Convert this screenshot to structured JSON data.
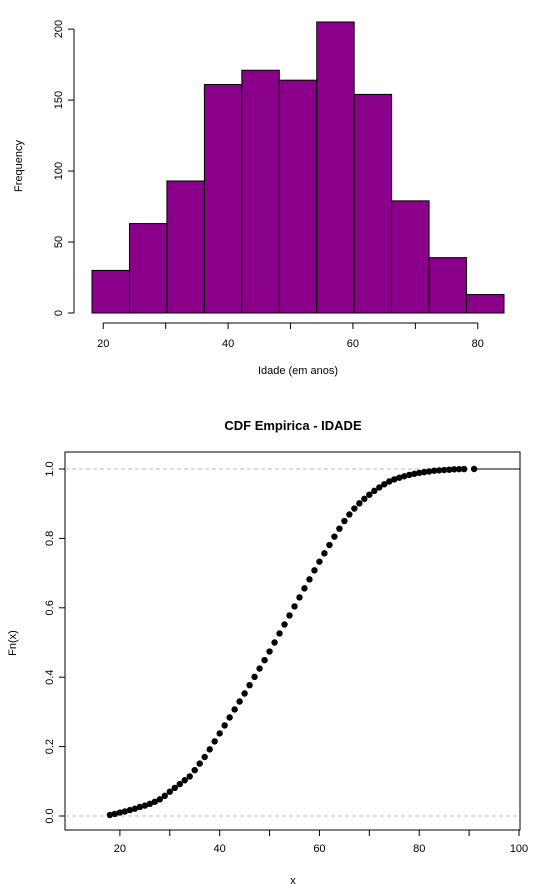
{
  "chart_data": [
    {
      "type": "bar",
      "subtype": "histogram",
      "title": "",
      "xlabel": "Idade (em anos)",
      "ylabel": "Frequency",
      "bar_color": "#8B008B",
      "bins": [
        {
          "from": 18.2,
          "to": 24.2,
          "count": 30
        },
        {
          "from": 24.2,
          "to": 30.2,
          "count": 63
        },
        {
          "from": 30.2,
          "to": 36.2,
          "count": 93
        },
        {
          "from": 36.2,
          "to": 42.2,
          "count": 161
        },
        {
          "from": 42.2,
          "to": 48.2,
          "count": 171
        },
        {
          "from": 48.2,
          "to": 54.2,
          "count": 164
        },
        {
          "from": 54.2,
          "to": 60.2,
          "count": 205
        },
        {
          "from": 60.2,
          "to": 66.2,
          "count": 154
        },
        {
          "from": 66.2,
          "to": 72.2,
          "count": 79
        },
        {
          "from": 72.2,
          "to": 78.2,
          "count": 39
        },
        {
          "from": 78.2,
          "to": 84.2,
          "count": 13
        }
      ],
      "xlim": [
        18.2,
        84.2
      ],
      "ylim": [
        0,
        205
      ],
      "x_ticks": [
        "20",
        "40",
        "60",
        "80"
      ],
      "y_ticks": [
        "0",
        "50",
        "100",
        "150",
        "200"
      ]
    },
    {
      "type": "scatter",
      "subtype": "ecdf",
      "title": "CDF Empirica - IDADE",
      "xlabel": "x",
      "ylabel": "Fn(x)",
      "xlim": [
        10,
        100
      ],
      "ylim": [
        0,
        1
      ],
      "x_ticks": [
        "20",
        "40",
        "60",
        "80",
        "100"
      ],
      "y_ticks": [
        "0.0",
        "0.2",
        "0.4",
        "0.6",
        "0.8",
        "1.0"
      ],
      "grid_lines": [
        0,
        1
      ],
      "x": [
        18,
        19,
        20,
        21,
        22,
        23,
        24,
        25,
        26,
        27,
        28,
        29,
        30,
        31,
        32,
        33,
        34,
        35,
        36,
        37,
        38,
        39,
        40,
        41,
        42,
        43,
        44,
        45,
        46,
        47,
        48,
        49,
        50,
        51,
        52,
        53,
        54,
        55,
        56,
        57,
        58,
        59,
        60,
        61,
        62,
        63,
        64,
        65,
        66,
        67,
        68,
        69,
        70,
        71,
        72,
        73,
        74,
        75,
        76,
        77,
        78,
        79,
        80,
        81,
        82,
        83,
        84,
        85,
        86,
        87,
        88,
        89,
        91
      ],
      "y": [
        0.003,
        0.006,
        0.01,
        0.013,
        0.017,
        0.021,
        0.026,
        0.03,
        0.035,
        0.041,
        0.048,
        0.058,
        0.07,
        0.081,
        0.092,
        0.103,
        0.114,
        0.132,
        0.151,
        0.17,
        0.192,
        0.215,
        0.238,
        0.261,
        0.284,
        0.307,
        0.33,
        0.353,
        0.377,
        0.401,
        0.425,
        0.449,
        0.474,
        0.5,
        0.526,
        0.552,
        0.578,
        0.604,
        0.63,
        0.656,
        0.682,
        0.708,
        0.733,
        0.757,
        0.781,
        0.805,
        0.828,
        0.85,
        0.869,
        0.886,
        0.901,
        0.914,
        0.926,
        0.937,
        0.947,
        0.956,
        0.964,
        0.97,
        0.975,
        0.979,
        0.983,
        0.986,
        0.989,
        0.991,
        0.993,
        0.995,
        0.996,
        0.997,
        0.998,
        0.999,
        0.9995,
        0.9998,
        1.0
      ]
    }
  ]
}
